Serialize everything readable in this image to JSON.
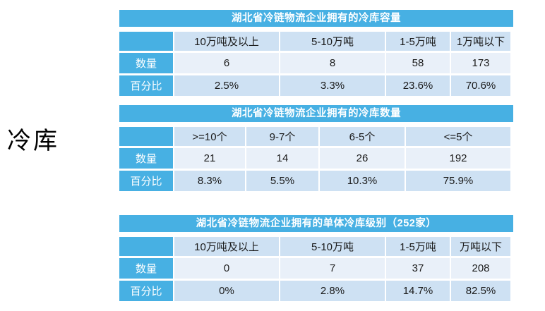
{
  "side_label": "冷库",
  "colors": {
    "accent": "#47b0e3",
    "band_dark": "#cee1f3",
    "band_light": "#e9f0f9",
    "title_text": "#ffffff",
    "cell_text": "#1a1a1a"
  },
  "tables": [
    {
      "title": "湖北省冷链物流企业拥有的冷库容量",
      "columns": [
        "10万吨及以上",
        "5-10万吨",
        "1-5万吨",
        "1万吨以下"
      ],
      "rows": [
        {
          "label": "数量",
          "values": [
            "6",
            "8",
            "58",
            "173"
          ]
        },
        {
          "label": "百分比",
          "values": [
            "2.5%",
            "3.3%",
            "23.6%",
            "70.6%"
          ]
        }
      ]
    },
    {
      "title": "湖北省冷链物流企业拥有的冷库数量",
      "columns": [
        ">=10个",
        "9-7个",
        "6-5个",
        "<=5个"
      ],
      "rows": [
        {
          "label": "数量",
          "values": [
            "21",
            "14",
            "26",
            "192"
          ]
        },
        {
          "label": "百分比",
          "values": [
            "8.3%",
            "5.5%",
            "10.3%",
            "75.9%"
          ]
        }
      ]
    },
    {
      "title": "湖北省冷链物流企业拥有的单体冷库级别（252家）",
      "columns": [
        "10万吨及以上",
        "5-10万吨",
        "1-5万吨",
        "万吨以下"
      ],
      "rows": [
        {
          "label": "数量",
          "values": [
            "0",
            "7",
            "37",
            "208"
          ]
        },
        {
          "label": "百分比",
          "values": [
            "0%",
            "2.8%",
            "14.7%",
            "82.5%"
          ]
        }
      ]
    }
  ]
}
